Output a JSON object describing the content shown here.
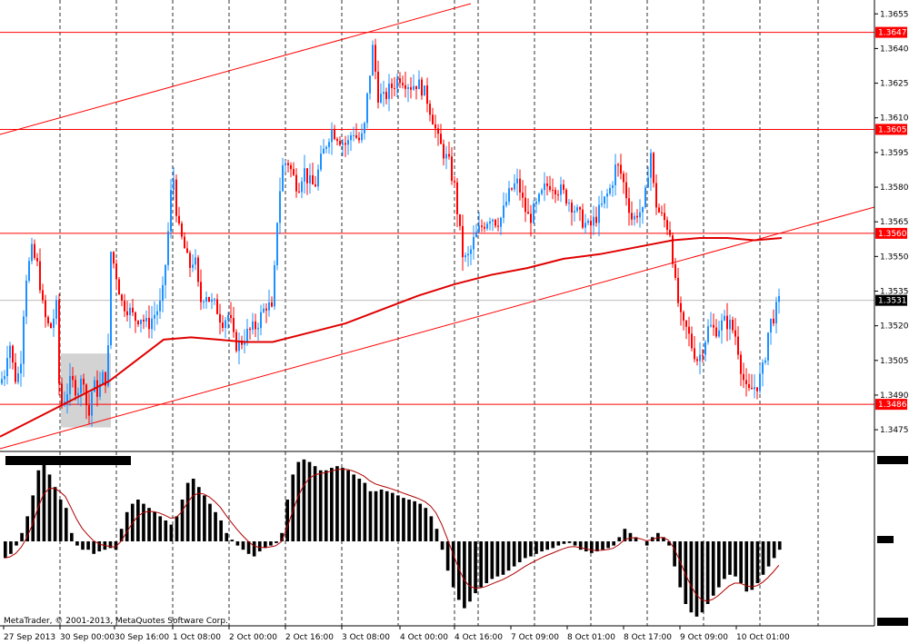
{
  "chart_data": {
    "type": "candlestick",
    "symbol": "",
    "price_axis": {
      "range": [
        1.3466,
        1.3661
      ],
      "ticks": [
        "1.3655",
        "1.3640",
        "1.3625",
        "1.3610",
        "1.3595",
        "1.3580",
        "1.3565",
        "1.3550",
        "1.3535",
        "1.3520",
        "1.3505",
        "1.3490",
        "1.3475"
      ]
    },
    "time_axis": {
      "labels": [
        "27 Sep 2013",
        "30 Sep 00:00",
        "30 Sep 16:00",
        "1 Oct 08:00",
        "2 Oct 00:00",
        "2 Oct 16:00",
        "3 Oct 08:00",
        "4 Oct 00:00",
        "4 Oct 16:00",
        "7 Oct 09:00",
        "8 Oct 01:00",
        "8 Oct 17:00",
        "9 Oct 09:00",
        "10 Oct 01:00"
      ]
    },
    "horizontal_levels": [
      "1.3647",
      "1.3605",
      "1.3560",
      "1.3486"
    ],
    "current_price": "1.3531",
    "close_path": [
      [
        0,
        1.3495
      ],
      [
        5,
        1.35
      ],
      [
        10,
        1.3515
      ],
      [
        16,
        1.3497
      ],
      [
        22,
        1.35
      ],
      [
        28,
        1.354
      ],
      [
        35,
        1.3552
      ],
      [
        42,
        1.3545
      ],
      [
        48,
        1.3525
      ],
      [
        55,
        1.3518
      ],
      [
        62,
        1.3528
      ],
      [
        66,
        1.3484
      ],
      [
        72,
        1.349
      ],
      [
        78,
        1.3496
      ],
      [
        85,
        1.3492
      ],
      [
        92,
        1.3498
      ],
      [
        97,
        1.3478
      ],
      [
        102,
        1.3495
      ],
      [
        108,
        1.3491
      ],
      [
        114,
        1.3499
      ],
      [
        118,
        1.3495
      ],
      [
        122,
        1.3552
      ],
      [
        128,
        1.3542
      ],
      [
        134,
        1.353
      ],
      [
        140,
        1.3528
      ],
      [
        148,
        1.3523
      ],
      [
        155,
        1.3524
      ],
      [
        162,
        1.352
      ],
      [
        170,
        1.3525
      ],
      [
        178,
        1.353
      ],
      [
        184,
        1.3555
      ],
      [
        190,
        1.3588
      ],
      [
        196,
        1.3562
      ],
      [
        202,
        1.3555
      ],
      [
        208,
        1.3545
      ],
      [
        214,
        1.355
      ],
      [
        220,
        1.353
      ],
      [
        226,
        1.3535
      ],
      [
        232,
        1.353
      ],
      [
        238,
        1.3528
      ],
      [
        244,
        1.3522
      ],
      [
        252,
        1.3525
      ],
      [
        258,
        1.3512
      ],
      [
        264,
        1.3512
      ],
      [
        270,
        1.3516
      ],
      [
        276,
        1.3518
      ],
      [
        282,
        1.352
      ],
      [
        288,
        1.3525
      ],
      [
        294,
        1.353
      ],
      [
        300,
        1.3525
      ],
      [
        304,
        1.3562
      ],
      [
        310,
        1.3588
      ],
      [
        316,
        1.3592
      ],
      [
        322,
        1.3585
      ],
      [
        328,
        1.358
      ],
      [
        334,
        1.3588
      ],
      [
        340,
        1.3582
      ],
      [
        346,
        1.358
      ],
      [
        352,
        1.359
      ],
      [
        358,
        1.3598
      ],
      [
        364,
        1.3605
      ],
      [
        370,
        1.3603
      ],
      [
        376,
        1.36
      ],
      [
        382,
        1.3598
      ],
      [
        388,
        1.3605
      ],
      [
        394,
        1.36
      ],
      [
        400,
        1.3602
      ],
      [
        405,
        1.3623
      ],
      [
        410,
        1.364
      ],
      [
        416,
        1.362
      ],
      [
        422,
        1.3618
      ],
      [
        428,
        1.3622
      ],
      [
        434,
        1.3625
      ],
      [
        440,
        1.3628
      ],
      [
        446,
        1.3626
      ],
      [
        452,
        1.3624
      ],
      [
        458,
        1.3625
      ],
      [
        464,
        1.3623
      ],
      [
        470,
        1.3618
      ],
      [
        476,
        1.361
      ],
      [
        482,
        1.36
      ],
      [
        488,
        1.3595
      ],
      [
        494,
        1.359
      ],
      [
        500,
        1.358
      ],
      [
        506,
        1.356
      ],
      [
        510,
        1.3548
      ],
      [
        516,
        1.355
      ],
      [
        522,
        1.3558
      ],
      [
        528,
        1.3562
      ],
      [
        534,
        1.3565
      ],
      [
        540,
        1.3568
      ],
      [
        546,
        1.3565
      ],
      [
        552,
        1.3567
      ],
      [
        558,
        1.3575
      ],
      [
        564,
        1.358
      ],
      [
        570,
        1.3582
      ],
      [
        576,
        1.3572
      ],
      [
        582,
        1.3566
      ],
      [
        588,
        1.357
      ],
      [
        594,
        1.3575
      ],
      [
        600,
        1.358
      ],
      [
        606,
        1.3582
      ],
      [
        612,
        1.358
      ],
      [
        618,
        1.3578
      ],
      [
        624,
        1.3575
      ],
      [
        630,
        1.3572
      ],
      [
        636,
        1.3568
      ],
      [
        642,
        1.3565
      ],
      [
        648,
        1.3562
      ],
      [
        654,
        1.3566
      ],
      [
        660,
        1.357
      ],
      [
        666,
        1.3575
      ],
      [
        672,
        1.358
      ],
      [
        678,
        1.359
      ],
      [
        684,
        1.3585
      ],
      [
        690,
        1.3575
      ],
      [
        696,
        1.3565
      ],
      [
        702,
        1.357
      ],
      [
        708,
        1.3568
      ],
      [
        712,
        1.3585
      ],
      [
        716,
        1.3595
      ],
      [
        720,
        1.3575
      ],
      [
        726,
        1.3568
      ],
      [
        732,
        1.3565
      ],
      [
        738,
        1.356
      ],
      [
        742,
        1.354
      ],
      [
        746,
        1.353
      ],
      [
        750,
        1.352
      ],
      [
        756,
        1.3518
      ],
      [
        762,
        1.351
      ],
      [
        768,
        1.3505
      ],
      [
        774,
        1.3512
      ],
      [
        780,
        1.352
      ],
      [
        786,
        1.3518
      ],
      [
        792,
        1.352
      ],
      [
        798,
        1.3522
      ],
      [
        804,
        1.352
      ],
      [
        810,
        1.3515
      ],
      [
        816,
        1.35
      ],
      [
        822,
        1.349
      ],
      [
        828,
        1.3493
      ],
      [
        834,
        1.3495
      ],
      [
        840,
        1.3502
      ],
      [
        846,
        1.352
      ],
      [
        852,
        1.3525
      ],
      [
        858,
        1.3531
      ]
    ],
    "moving_average": [
      [
        0,
        1.3472
      ],
      [
        40,
        1.348
      ],
      [
        80,
        1.3488
      ],
      [
        120,
        1.3496
      ],
      [
        150,
        1.3505
      ],
      [
        180,
        1.3514
      ],
      [
        210,
        1.3515
      ],
      [
        240,
        1.3514
      ],
      [
        270,
        1.3513
      ],
      [
        300,
        1.3513
      ],
      [
        340,
        1.3517
      ],
      [
        380,
        1.3521
      ],
      [
        420,
        1.3527
      ],
      [
        460,
        1.3533
      ],
      [
        500,
        1.3538
      ],
      [
        540,
        1.3542
      ],
      [
        580,
        1.3545
      ],
      [
        620,
        1.3549
      ],
      [
        660,
        1.3551
      ],
      [
        700,
        1.3554
      ],
      [
        740,
        1.3557
      ],
      [
        770,
        1.3558
      ],
      [
        800,
        1.3558
      ],
      [
        830,
        1.3557
      ],
      [
        860,
        1.3558
      ]
    ],
    "indicator": {
      "type": "histogram",
      "values": [
        -0.2,
        -0.15,
        -0.05,
        0.1,
        0.3,
        0.55,
        0.85,
        0.95,
        0.8,
        0.65,
        0.5,
        0.4,
        0.1,
        -0.05,
        -0.1,
        -0.1,
        -0.15,
        -0.12,
        -0.1,
        -0.08,
        -0.1,
        0.15,
        0.35,
        0.45,
        0.5,
        0.45,
        0.4,
        0.35,
        0.3,
        0.25,
        0.2,
        0.3,
        0.5,
        0.7,
        0.75,
        0.65,
        0.55,
        0.45,
        0.35,
        0.25,
        0.1,
        0.02,
        -0.05,
        -0.1,
        -0.15,
        -0.18,
        -0.12,
        -0.08,
        -0.05,
        -0.02,
        0.1,
        0.5,
        0.8,
        0.95,
        0.98,
        0.95,
        0.9,
        0.85,
        0.85,
        0.88,
        0.9,
        0.88,
        0.85,
        0.8,
        0.75,
        0.7,
        0.6,
        0.6,
        0.62,
        0.6,
        0.58,
        0.55,
        0.52,
        0.5,
        0.48,
        0.45,
        0.4,
        0.3,
        0.15,
        -0.1,
        -0.35,
        -0.55,
        -0.7,
        -0.8,
        -0.72,
        -0.62,
        -0.55,
        -0.5,
        -0.45,
        -0.42,
        -0.4,
        -0.35,
        -0.3,
        -0.25,
        -0.2,
        -0.18,
        -0.15,
        -0.12,
        -0.1,
        -0.08,
        -0.05,
        -0.03,
        -0.02,
        -0.05,
        -0.1,
        -0.12,
        -0.14,
        -0.12,
        -0.1,
        -0.08,
        -0.05,
        0.05,
        0.15,
        0.1,
        0.05,
        0.0,
        -0.05,
        0.05,
        0.1,
        0.05,
        -0.05,
        -0.3,
        -0.55,
        -0.75,
        -0.85,
        -0.9,
        -0.85,
        -0.75,
        -0.65,
        -0.55,
        -0.45,
        -0.4,
        -0.42,
        -0.5,
        -0.6,
        -0.58,
        -0.5,
        -0.4,
        -0.3,
        -0.2,
        -0.1
      ]
    },
    "grid": true,
    "legend": ""
  },
  "footer": {
    "copyright": "MetaTrader, © 2001-2013, MetaQuotes Software Corp."
  },
  "colors": {
    "bull": "#1e90ff",
    "bear": "#ff0000",
    "level_line": "#ff0000",
    "ma_line": "#e00000",
    "trend_line": "#ff0000",
    "grid": "#000000",
    "current_badge": "#000000",
    "level_badge": "#ff0000",
    "histogram": "#000000",
    "signal": "#b00000"
  }
}
